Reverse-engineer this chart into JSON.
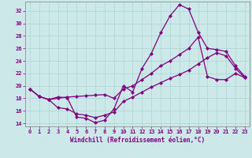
{
  "xlabel": "Windchill (Refroidissement éolien,°C)",
  "background_color": "#cce8e8",
  "line_color": "#800080",
  "grid_color": "#aad4d4",
  "xlim": [
    -0.5,
    23.5
  ],
  "ylim": [
    13.5,
    33.5
  ],
  "xticks": [
    0,
    1,
    2,
    3,
    4,
    5,
    6,
    7,
    8,
    9,
    10,
    11,
    12,
    13,
    14,
    15,
    16,
    17,
    18,
    19,
    20,
    21,
    22,
    23
  ],
  "yticks": [
    14,
    16,
    18,
    20,
    22,
    24,
    26,
    28,
    30,
    32
  ],
  "line1_x": [
    0,
    1,
    2,
    3,
    4,
    5,
    6,
    7,
    8,
    9,
    10,
    11,
    12,
    13,
    14,
    15,
    16,
    17,
    18,
    19,
    20,
    21,
    22,
    23
  ],
  "line1_y": [
    19.5,
    18.3,
    17.8,
    18.2,
    18.1,
    15.0,
    14.8,
    14.1,
    14.5,
    16.3,
    20.0,
    19.0,
    22.8,
    25.2,
    28.5,
    31.2,
    33.0,
    32.3,
    28.6,
    26.0,
    25.8,
    25.5,
    23.2,
    21.5
  ],
  "line2_x": [
    0,
    1,
    2,
    3,
    4,
    5,
    6,
    7,
    8,
    9,
    10,
    11,
    12,
    13,
    14,
    15,
    16,
    17,
    18,
    19,
    20,
    21,
    22,
    23
  ],
  "line2_y": [
    19.5,
    18.3,
    17.8,
    18.0,
    18.2,
    18.3,
    18.4,
    18.5,
    18.6,
    18.0,
    19.5,
    20.0,
    21.0,
    22.0,
    23.2,
    24.0,
    25.0,
    26.0,
    27.8,
    21.5,
    21.0,
    21.0,
    22.0,
    21.3
  ],
  "line3_x": [
    0,
    1,
    2,
    3,
    4,
    5,
    6,
    7,
    8,
    9,
    10,
    11,
    12,
    13,
    14,
    15,
    16,
    17,
    18,
    19,
    20,
    21,
    22,
    23
  ],
  "line3_y": [
    19.5,
    18.3,
    17.8,
    16.5,
    16.3,
    15.5,
    15.3,
    14.9,
    15.3,
    15.8,
    17.5,
    18.2,
    19.0,
    19.8,
    20.5,
    21.2,
    21.8,
    22.5,
    23.5,
    24.5,
    25.3,
    24.8,
    22.8,
    21.3
  ]
}
